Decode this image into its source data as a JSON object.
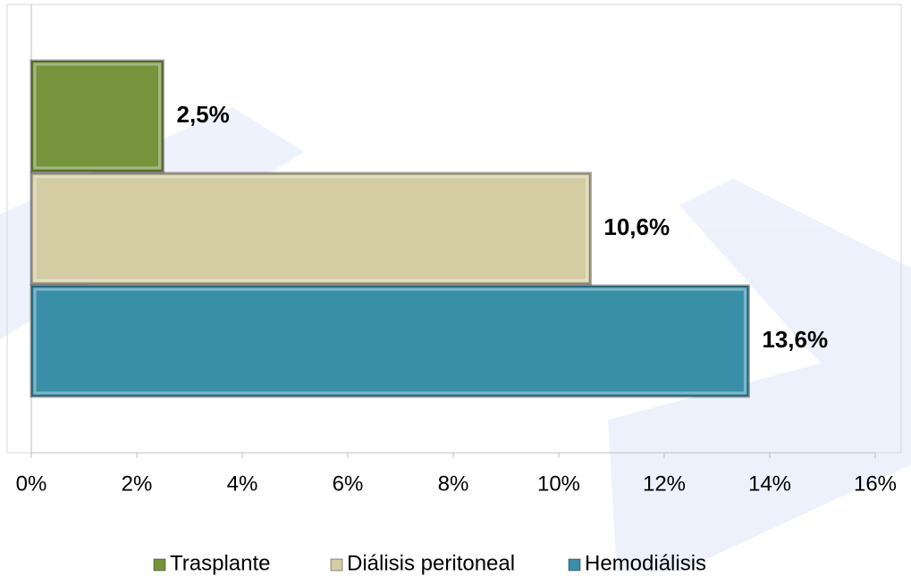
{
  "chart_data": {
    "type": "barh",
    "categories": [
      null
    ],
    "series": [
      {
        "name": "Trasplante",
        "color": "#77933c",
        "values": [
          2.5
        ],
        "value_labels": [
          "2,5%"
        ]
      },
      {
        "name": "Diálisis peritoneal",
        "color": "#d4cca2",
        "values": [
          10.6
        ],
        "value_labels": [
          "10,6%"
        ]
      },
      {
        "name": "Hemodiálisis",
        "color": "#3a8fa8",
        "values": [
          13.6
        ],
        "value_labels": [
          "13,6%"
        ]
      }
    ],
    "xlim": [
      0,
      16
    ],
    "xticks": [
      {
        "value": 0,
        "label": "0%"
      },
      {
        "value": 2,
        "label": "2%"
      },
      {
        "value": 4,
        "label": "4%"
      },
      {
        "value": 6,
        "label": "6%"
      },
      {
        "value": 8,
        "label": "8%"
      },
      {
        "value": 10,
        "label": "10%"
      },
      {
        "value": 12,
        "label": "12%"
      },
      {
        "value": 14,
        "label": "14%"
      },
      {
        "value": 16,
        "label": "16%"
      }
    ],
    "legend": "bottom"
  }
}
